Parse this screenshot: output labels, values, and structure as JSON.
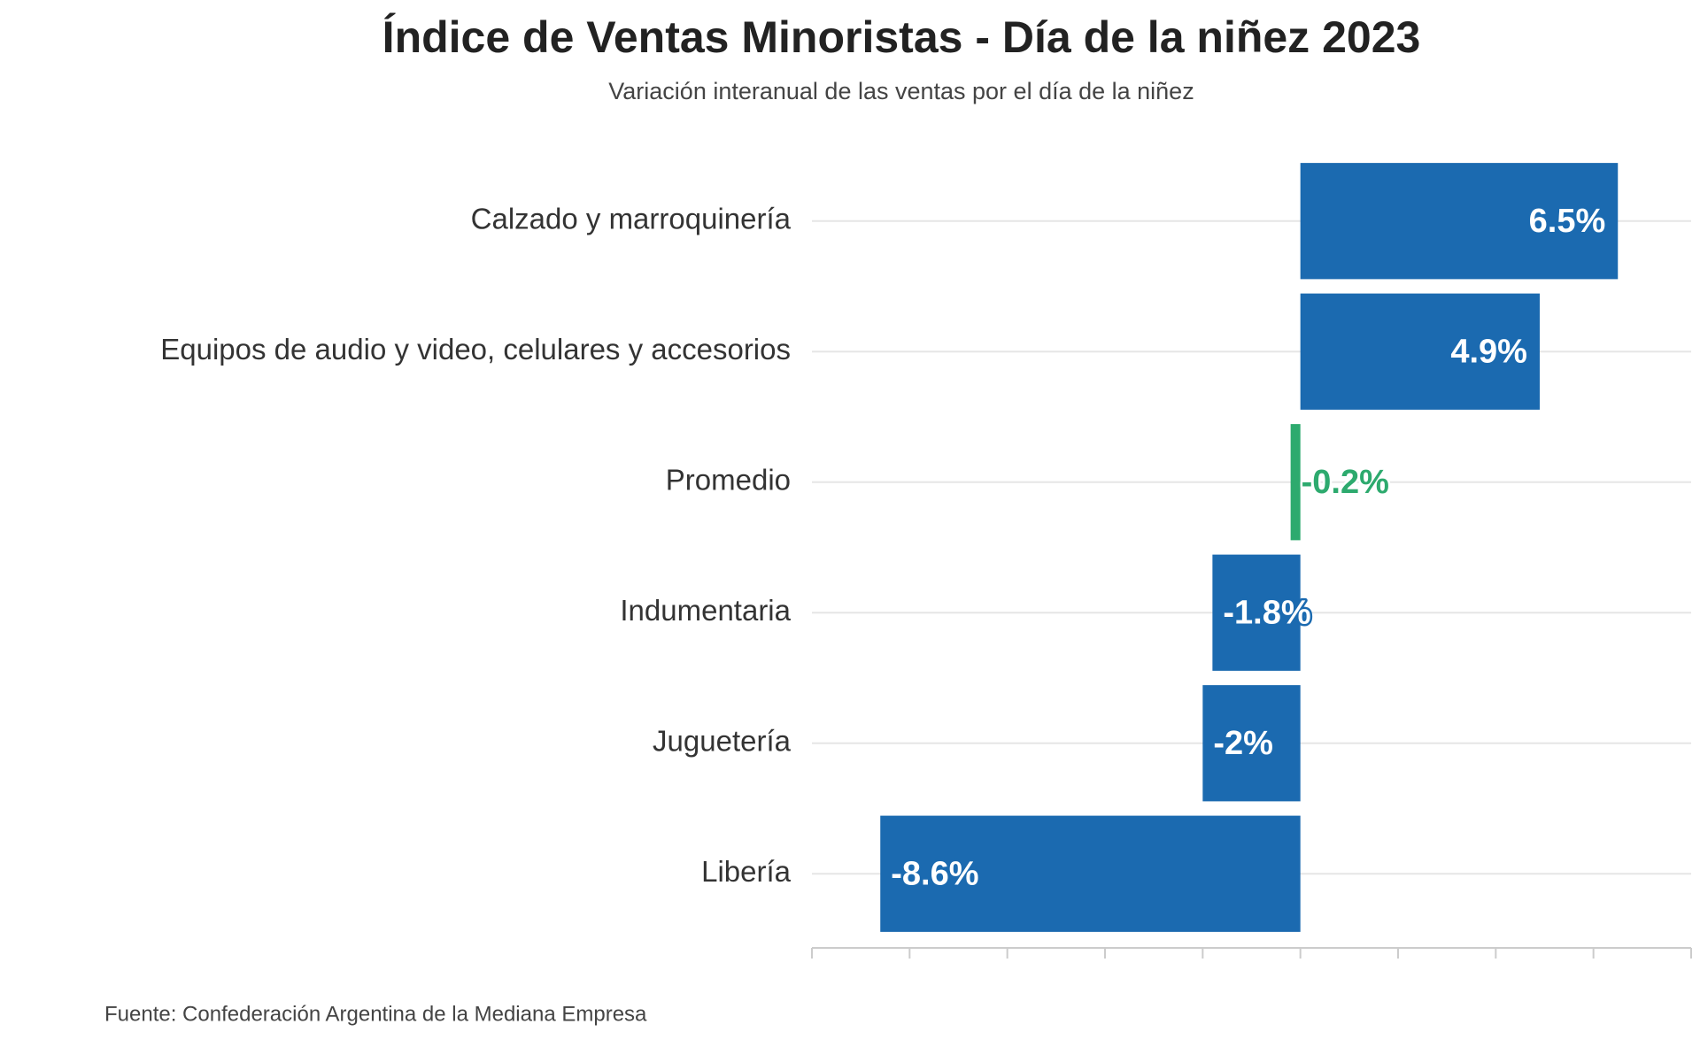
{
  "chart_data": {
    "type": "bar",
    "orientation": "horizontal",
    "title": "Índice de Ventas Minoristas - Día de la niñez 2023",
    "subtitle": "Variación interanual de las ventas por el día de la niñez",
    "categories": [
      "Calzado y marroquinería",
      "Equipos de audio y video, celulares y accesorios",
      "Promedio",
      "Indumentaria",
      "Juguetería",
      "Libería"
    ],
    "values": [
      6.5,
      4.9,
      -0.2,
      -1.8,
      -2,
      -8.6
    ],
    "value_labels": [
      "6.5%",
      "4.9%",
      "-0.2%",
      "-1.8%",
      "-2%",
      "-8.6%"
    ],
    "colors": [
      "#1b6ab0",
      "#1b6ab0",
      "#2daa6e",
      "#1b6ab0",
      "#1b6ab0",
      "#1b6ab0"
    ],
    "xlim": [
      -10,
      8
    ],
    "xticks": [
      -10,
      -8,
      -6,
      -4,
      -2,
      0,
      2,
      4,
      6,
      8
    ],
    "source": "Fuente: Confederación Argentina de la Mediana Empresa"
  }
}
